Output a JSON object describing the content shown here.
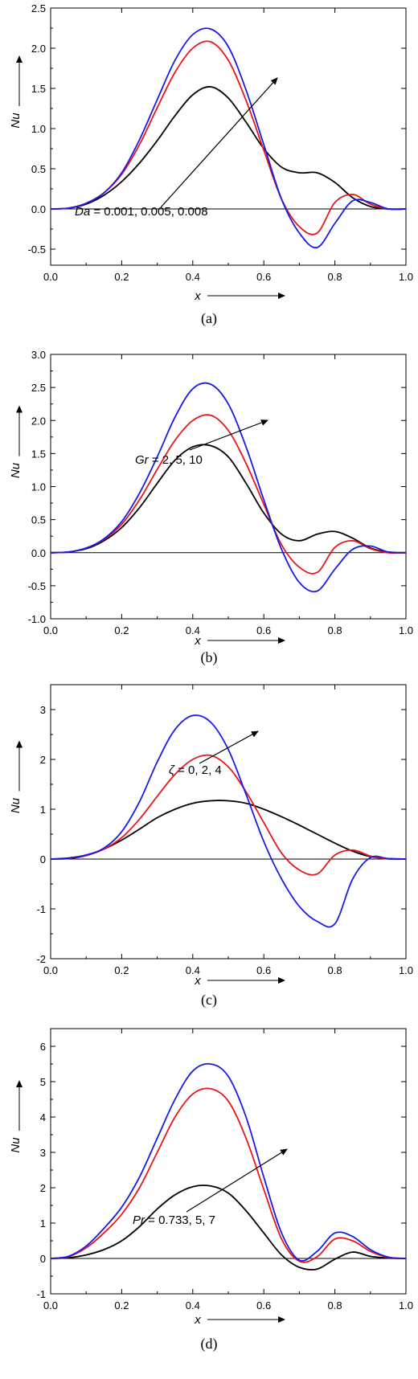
{
  "chart_data": [
    {
      "type": "line",
      "panel_label": "(a)",
      "xlabel": "x",
      "ylabel": "Nu",
      "xlim": [
        0.0,
        1.0
      ],
      "ylim": [
        -0.7,
        2.5
      ],
      "xticks": [
        0.0,
        0.2,
        0.4,
        0.6,
        0.8,
        1.0
      ],
      "xtick_labels": [
        "0.0",
        "0.2",
        "0.4",
        "0.6",
        "0.8",
        "1.0"
      ],
      "yticks": [
        -0.5,
        0.0,
        0.5,
        1.0,
        1.5,
        2.0,
        2.5
      ],
      "ytick_labels": [
        "-0.5",
        "0.0",
        "0.5",
        "1.0",
        "1.5",
        "2.0",
        "2.5"
      ],
      "annotation": {
        "variable": "Da",
        "values_text": " = 0.001, 0.005, 0.008"
      },
      "colors": {
        "black": "#000000",
        "red": "#e8161b",
        "blue": "#1a1ae6"
      },
      "series": [
        {
          "color": "black",
          "x": [
            0,
            0.05,
            0.1,
            0.15,
            0.2,
            0.25,
            0.3,
            0.35,
            0.4,
            0.45,
            0.5,
            0.55,
            0.6,
            0.65,
            0.7,
            0.75,
            0.8,
            0.85,
            0.9,
            0.95,
            1.0
          ],
          "y": [
            0,
            0.01,
            0.06,
            0.17,
            0.34,
            0.57,
            0.85,
            1.16,
            1.42,
            1.52,
            1.38,
            1.08,
            0.75,
            0.52,
            0.45,
            0.45,
            0.33,
            0.14,
            0.03,
            0.0,
            0
          ]
        },
        {
          "color": "red",
          "x": [
            0,
            0.05,
            0.1,
            0.15,
            0.2,
            0.25,
            0.3,
            0.35,
            0.4,
            0.45,
            0.5,
            0.55,
            0.6,
            0.65,
            0.7,
            0.75,
            0.8,
            0.85,
            0.9,
            0.95,
            1.0
          ],
          "y": [
            0,
            0.01,
            0.07,
            0.2,
            0.43,
            0.8,
            1.26,
            1.7,
            2.0,
            2.08,
            1.85,
            1.35,
            0.73,
            0.12,
            -0.22,
            -0.3,
            0.08,
            0.18,
            0.06,
            0.0,
            0
          ]
        },
        {
          "color": "blue",
          "x": [
            0,
            0.05,
            0.1,
            0.15,
            0.2,
            0.25,
            0.3,
            0.35,
            0.4,
            0.45,
            0.5,
            0.55,
            0.6,
            0.65,
            0.7,
            0.75,
            0.8,
            0.85,
            0.9,
            0.95,
            1.0
          ],
          "y": [
            0,
            0.01,
            0.07,
            0.2,
            0.45,
            0.86,
            1.36,
            1.85,
            2.17,
            2.24,
            2.02,
            1.48,
            0.8,
            0.12,
            -0.3,
            -0.48,
            -0.18,
            0.1,
            0.08,
            0.0,
            0
          ]
        }
      ]
    },
    {
      "type": "line",
      "panel_label": "(b)",
      "xlabel": "x",
      "ylabel": "Nu",
      "xlim": [
        0.0,
        1.0
      ],
      "ylim": [
        -1.0,
        3.0
      ],
      "xticks": [
        0.0,
        0.2,
        0.4,
        0.6,
        0.8,
        1.0
      ],
      "xtick_labels": [
        "0.0",
        "0.2",
        "0.4",
        "0.6",
        "0.8",
        "1.0"
      ],
      "yticks": [
        -1.0,
        -0.5,
        0.0,
        0.5,
        1.0,
        1.5,
        2.0,
        2.5,
        3.0
      ],
      "ytick_labels": [
        "-1.0",
        "-0.5",
        "0.0",
        "0.5",
        "1.0",
        "1.5",
        "2.0",
        "2.5",
        "3.0"
      ],
      "annotation": {
        "variable": "Gr",
        "values_text": " = 2, 5, 10"
      },
      "colors": {
        "black": "#000000",
        "red": "#e8161b",
        "blue": "#1a1ae6"
      },
      "series": [
        {
          "color": "black",
          "x": [
            0,
            0.05,
            0.1,
            0.15,
            0.2,
            0.25,
            0.3,
            0.35,
            0.4,
            0.45,
            0.5,
            0.55,
            0.6,
            0.65,
            0.7,
            0.75,
            0.8,
            0.85,
            0.9,
            0.95,
            1.0
          ],
          "y": [
            0,
            0.01,
            0.06,
            0.18,
            0.38,
            0.68,
            1.05,
            1.4,
            1.6,
            1.62,
            1.45,
            1.05,
            0.6,
            0.28,
            0.18,
            0.28,
            0.32,
            0.22,
            0.07,
            0.01,
            0
          ]
        },
        {
          "color": "red",
          "x": [
            0,
            0.05,
            0.1,
            0.15,
            0.2,
            0.25,
            0.3,
            0.35,
            0.4,
            0.45,
            0.5,
            0.55,
            0.6,
            0.65,
            0.7,
            0.75,
            0.8,
            0.85,
            0.9,
            0.95,
            1.0
          ],
          "y": [
            0,
            0.01,
            0.07,
            0.2,
            0.43,
            0.8,
            1.26,
            1.7,
            2.0,
            2.08,
            1.85,
            1.35,
            0.73,
            0.12,
            -0.22,
            -0.3,
            0.08,
            0.18,
            0.06,
            0.0,
            0
          ]
        },
        {
          "color": "blue",
          "x": [
            0,
            0.05,
            0.1,
            0.15,
            0.2,
            0.25,
            0.3,
            0.35,
            0.4,
            0.45,
            0.5,
            0.55,
            0.6,
            0.65,
            0.7,
            0.75,
            0.8,
            0.85,
            0.9,
            0.95,
            1.0
          ],
          "y": [
            0,
            0.01,
            0.07,
            0.21,
            0.47,
            0.9,
            1.45,
            2.05,
            2.48,
            2.55,
            2.25,
            1.6,
            0.8,
            0.05,
            -0.45,
            -0.58,
            -0.25,
            0.05,
            0.1,
            0.01,
            0
          ]
        }
      ]
    },
    {
      "type": "line",
      "panel_label": "(c)",
      "xlabel": "x",
      "ylabel": "Nu",
      "xlim": [
        0.0,
        1.0
      ],
      "ylim": [
        -2,
        3.5
      ],
      "xticks": [
        0.0,
        0.2,
        0.4,
        0.6,
        0.8,
        1.0
      ],
      "xtick_labels": [
        "0.0",
        "0.2",
        "0.4",
        "0.6",
        "0.8",
        "1.0"
      ],
      "yticks": [
        -2,
        -1,
        0,
        1,
        2,
        3
      ],
      "ytick_labels": [
        "-2",
        "-1",
        "0",
        "1",
        "2",
        "3"
      ],
      "annotation": {
        "variable": "ζ",
        "values_text": " = 0, 2, 4"
      },
      "colors": {
        "black": "#000000",
        "red": "#e8161b",
        "blue": "#1a1ae6"
      },
      "series": [
        {
          "color": "black",
          "x": [
            0,
            0.05,
            0.1,
            0.15,
            0.2,
            0.25,
            0.3,
            0.35,
            0.4,
            0.45,
            0.5,
            0.55,
            0.6,
            0.65,
            0.7,
            0.75,
            0.8,
            0.85,
            0.9,
            0.95,
            1.0
          ],
          "y": [
            0,
            0.02,
            0.08,
            0.2,
            0.38,
            0.6,
            0.83,
            1.0,
            1.12,
            1.17,
            1.17,
            1.12,
            1.0,
            0.85,
            0.68,
            0.5,
            0.32,
            0.16,
            0.05,
            0.01,
            0
          ]
        },
        {
          "color": "red",
          "x": [
            0,
            0.05,
            0.1,
            0.15,
            0.2,
            0.25,
            0.3,
            0.35,
            0.4,
            0.45,
            0.5,
            0.55,
            0.6,
            0.65,
            0.7,
            0.75,
            0.8,
            0.85,
            0.9,
            0.95,
            1.0
          ],
          "y": [
            0,
            0.01,
            0.07,
            0.2,
            0.43,
            0.8,
            1.26,
            1.7,
            2.0,
            2.08,
            1.85,
            1.35,
            0.73,
            0.12,
            -0.22,
            -0.3,
            0.08,
            0.18,
            0.06,
            0.0,
            0
          ]
        },
        {
          "color": "blue",
          "x": [
            0,
            0.05,
            0.1,
            0.15,
            0.2,
            0.25,
            0.3,
            0.35,
            0.4,
            0.45,
            0.5,
            0.55,
            0.6,
            0.65,
            0.7,
            0.75,
            0.8,
            0.85,
            0.9,
            0.95,
            1.0
          ],
          "y": [
            0,
            0.01,
            0.08,
            0.22,
            0.55,
            1.15,
            1.95,
            2.6,
            2.88,
            2.75,
            2.2,
            1.3,
            0.35,
            -0.4,
            -0.95,
            -1.25,
            -1.3,
            -0.4,
            0.03,
            0.01,
            0
          ]
        }
      ]
    },
    {
      "type": "line",
      "panel_label": "(d)",
      "xlabel": "x",
      "ylabel": "Nu",
      "xlim": [
        0.0,
        1.0
      ],
      "ylim": [
        -1,
        6.5
      ],
      "xticks": [
        0.0,
        0.2,
        0.4,
        0.6,
        0.8,
        1.0
      ],
      "xtick_labels": [
        "0.0",
        "0.2",
        "0.4",
        "0.6",
        "0.8",
        "1.0"
      ],
      "yticks": [
        -1,
        0,
        1,
        2,
        3,
        4,
        5,
        6
      ],
      "ytick_labels": [
        "-1",
        "0",
        "1",
        "2",
        "3",
        "4",
        "5",
        "6"
      ],
      "annotation": {
        "variable": "Pr",
        "values_text": " = 0.733, 5, 7"
      },
      "colors": {
        "black": "#000000",
        "red": "#e8161b",
        "blue": "#1a1ae6"
      },
      "series": [
        {
          "color": "black",
          "x": [
            0,
            0.05,
            0.1,
            0.15,
            0.2,
            0.25,
            0.3,
            0.35,
            0.4,
            0.45,
            0.5,
            0.55,
            0.6,
            0.65,
            0.7,
            0.75,
            0.8,
            0.85,
            0.9,
            0.95,
            1.0
          ],
          "y": [
            0,
            0.02,
            0.1,
            0.25,
            0.5,
            0.9,
            1.4,
            1.8,
            2.03,
            2.05,
            1.85,
            1.35,
            0.72,
            0.1,
            -0.25,
            -0.3,
            -0.02,
            0.18,
            0.06,
            0.01,
            0
          ]
        },
        {
          "color": "red",
          "x": [
            0,
            0.05,
            0.1,
            0.15,
            0.2,
            0.25,
            0.3,
            0.35,
            0.4,
            0.45,
            0.5,
            0.55,
            0.6,
            0.65,
            0.7,
            0.75,
            0.8,
            0.85,
            0.9,
            0.95,
            1.0
          ],
          "y": [
            0,
            0.05,
            0.3,
            0.72,
            1.25,
            2.0,
            3.0,
            4.0,
            4.65,
            4.8,
            4.45,
            3.4,
            1.95,
            0.55,
            -0.08,
            0.05,
            0.55,
            0.5,
            0.2,
            0.03,
            0
          ]
        },
        {
          "color": "blue",
          "x": [
            0,
            0.05,
            0.1,
            0.15,
            0.2,
            0.25,
            0.3,
            0.35,
            0.4,
            0.45,
            0.5,
            0.55,
            0.6,
            0.65,
            0.7,
            0.75,
            0.8,
            0.85,
            0.9,
            0.95,
            1.0
          ],
          "y": [
            0,
            0.06,
            0.35,
            0.85,
            1.45,
            2.3,
            3.4,
            4.5,
            5.3,
            5.5,
            5.15,
            4.0,
            2.3,
            0.72,
            -0.05,
            0.2,
            0.72,
            0.62,
            0.25,
            0.04,
            0
          ]
        }
      ]
    }
  ]
}
